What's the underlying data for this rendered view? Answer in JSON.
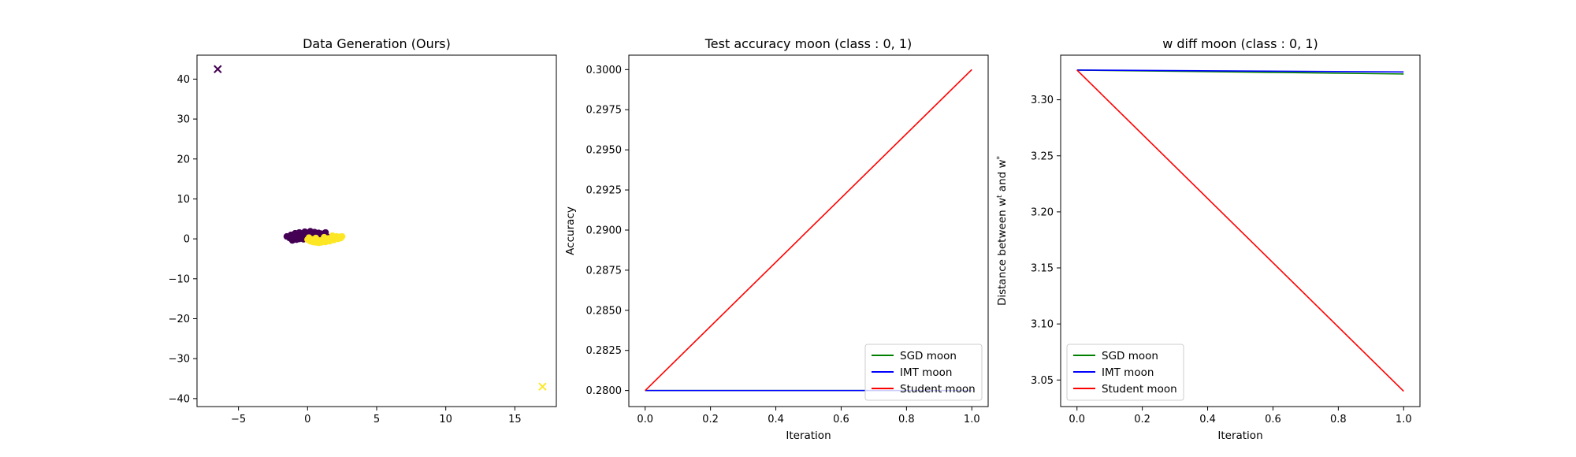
{
  "chart_data": [
    {
      "type": "scatter",
      "title": "Data Generation (Ours)",
      "xlabel": "",
      "ylabel": "",
      "xlim": [
        -8,
        18
      ],
      "ylim": [
        -42,
        46
      ],
      "xticks": [
        -5,
        0,
        5,
        10,
        15
      ],
      "yticks": [
        -40,
        -30,
        -20,
        -10,
        0,
        10,
        20,
        30,
        40
      ],
      "grid": false,
      "colors": {
        "class0": "#440154",
        "class1": "#fde725"
      },
      "cluster_points": {
        "class0": [
          [
            -1.5,
            0.6
          ],
          [
            -1.3,
            0.2
          ],
          [
            -1.2,
            1.0
          ],
          [
            -1.0,
            0.4
          ],
          [
            -0.9,
            1.4
          ],
          [
            -0.8,
            -0.2
          ],
          [
            -0.7,
            0.9
          ],
          [
            -0.6,
            1.6
          ],
          [
            -0.5,
            0.3
          ],
          [
            -0.4,
            1.2
          ],
          [
            -0.3,
            -0.1
          ],
          [
            -0.2,
            1.8
          ],
          [
            -0.1,
            0.7
          ],
          [
            0.0,
            1.5
          ],
          [
            0.1,
            0.2
          ],
          [
            0.2,
            1.9
          ],
          [
            0.3,
            1.0
          ],
          [
            0.4,
            0.5
          ],
          [
            0.5,
            1.7
          ],
          [
            0.6,
            1.2
          ],
          [
            0.7,
            0.3
          ],
          [
            0.8,
            1.5
          ],
          [
            0.9,
            0.8
          ],
          [
            1.0,
            1.3
          ],
          [
            1.1,
            0.4
          ],
          [
            1.2,
            1.0
          ],
          [
            1.3,
            1.6
          ],
          [
            1.4,
            0.6
          ],
          [
            -1.1,
            -0.4
          ],
          [
            -0.6,
            0.0
          ],
          [
            0.4,
            1.4
          ],
          [
            1.0,
            0.0
          ],
          [
            1.1,
            -0.6
          ]
        ],
        "class1": [
          [
            0.0,
            -0.2
          ],
          [
            0.1,
            0.3
          ],
          [
            0.2,
            -0.6
          ],
          [
            0.3,
            -0.1
          ],
          [
            0.4,
            -0.8
          ],
          [
            0.5,
            -0.3
          ],
          [
            0.6,
            -0.9
          ],
          [
            0.7,
            -0.5
          ],
          [
            0.8,
            -1.0
          ],
          [
            0.9,
            -0.4
          ],
          [
            1.0,
            -0.9
          ],
          [
            1.1,
            -0.6
          ],
          [
            1.2,
            -0.2
          ],
          [
            1.3,
            -0.8
          ],
          [
            1.4,
            -0.4
          ],
          [
            1.5,
            0.1
          ],
          [
            1.6,
            -0.6
          ],
          [
            1.7,
            -0.1
          ],
          [
            1.8,
            0.3
          ],
          [
            1.9,
            -0.3
          ],
          [
            2.0,
            0.2
          ],
          [
            2.1,
            0.6
          ],
          [
            2.2,
            0.0
          ],
          [
            2.3,
            0.5
          ],
          [
            2.4,
            0.2
          ],
          [
            2.5,
            0.6
          ],
          [
            1.2,
            0.4
          ],
          [
            0.6,
            0.2
          ],
          [
            1.8,
            0.8
          ]
        ]
      },
      "markers": [
        {
          "class": "class0",
          "x": -6.5,
          "y": 42.5,
          "shape": "x"
        },
        {
          "class": "class1",
          "x": 17.0,
          "y": -37.0,
          "shape": "x"
        }
      ]
    },
    {
      "type": "line",
      "title": "Test accuracy moon (class : 0, 1)",
      "xlabel": "Iteration",
      "ylabel": "Accuracy",
      "xlim": [
        -0.05,
        1.05
      ],
      "ylim": [
        0.279,
        0.3009
      ],
      "xticks": [
        0.0,
        0.2,
        0.4,
        0.6,
        0.8,
        1.0
      ],
      "yticks": [
        0.28,
        0.2825,
        0.285,
        0.2875,
        0.29,
        0.2925,
        0.295,
        0.2975,
        0.3
      ],
      "grid": false,
      "legend_position": "lower-right",
      "x": [
        0,
        1
      ],
      "series": [
        {
          "name": "SGD moon",
          "color": "#008000",
          "values": [
            0.28,
            0.28
          ]
        },
        {
          "name": "IMT moon",
          "color": "#0000ff",
          "values": [
            0.28,
            0.28
          ]
        },
        {
          "name": "Student moon",
          "color": "#ff0000",
          "values": [
            0.28,
            0.3
          ]
        }
      ]
    },
    {
      "type": "line",
      "title": "w diff moon (class : 0, 1)",
      "xlabel": "Iteration",
      "ylabel": "Distance between w^t and w^*",
      "xlim": [
        -0.05,
        1.05
      ],
      "ylim": [
        3.0263,
        3.3398
      ],
      "xticks": [
        0.0,
        0.2,
        0.4,
        0.6,
        0.8,
        1.0
      ],
      "yticks": [
        3.05,
        3.1,
        3.15,
        3.2,
        3.25,
        3.3
      ],
      "grid": false,
      "legend_position": "lower-left",
      "x": [
        0,
        1
      ],
      "series": [
        {
          "name": "SGD moon",
          "color": "#008000",
          "values": [
            3.3265,
            3.323
          ]
        },
        {
          "name": "IMT moon",
          "color": "#0000ff",
          "values": [
            3.3265,
            3.3248
          ]
        },
        {
          "name": "Student moon",
          "color": "#ff0000",
          "values": [
            3.3265,
            3.04
          ]
        }
      ]
    }
  ]
}
